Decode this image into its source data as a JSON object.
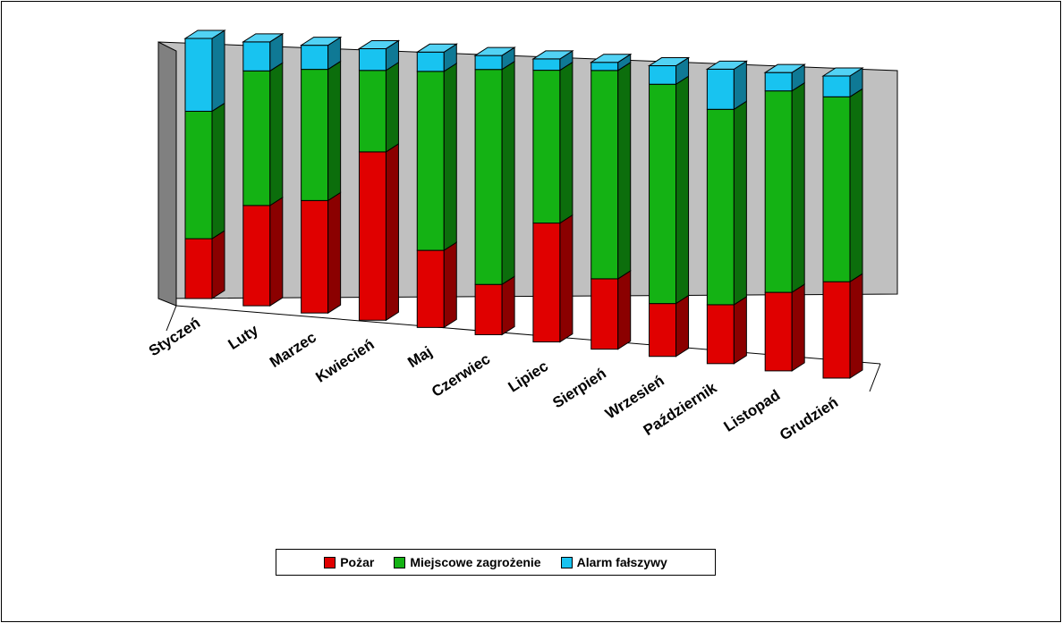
{
  "chart_data": {
    "type": "bar",
    "stacked": true,
    "normalized_100": true,
    "view": "3d",
    "categories": [
      "Styczeń",
      "Luty",
      "Marzec",
      "Kwiecień",
      "Maj",
      "Czerwiec",
      "Lipiec",
      "Sierpień",
      "Wrzesień",
      "Październik",
      "Listopad",
      "Grudzień"
    ],
    "series": [
      {
        "name": "Pożar",
        "color": "#e00000",
        "values": [
          23,
          38,
          42,
          62,
          28,
          18,
          42,
          26,
          20,
          22,
          30,
          37
        ]
      },
      {
        "name": "Miejscowe zagrożenie",
        "color": "#14b214",
        "values": [
          49,
          51,
          49,
          30,
          65,
          77,
          54,
          77,
          83,
          73,
          77,
          71
        ]
      },
      {
        "name": "Alarm fałszywy",
        "color": "#18c3f0",
        "values": [
          28,
          11,
          9,
          8,
          7,
          5,
          4,
          3,
          7,
          15,
          7,
          8
        ]
      }
    ],
    "legend": {
      "position": "bottom"
    },
    "grid": false
  }
}
